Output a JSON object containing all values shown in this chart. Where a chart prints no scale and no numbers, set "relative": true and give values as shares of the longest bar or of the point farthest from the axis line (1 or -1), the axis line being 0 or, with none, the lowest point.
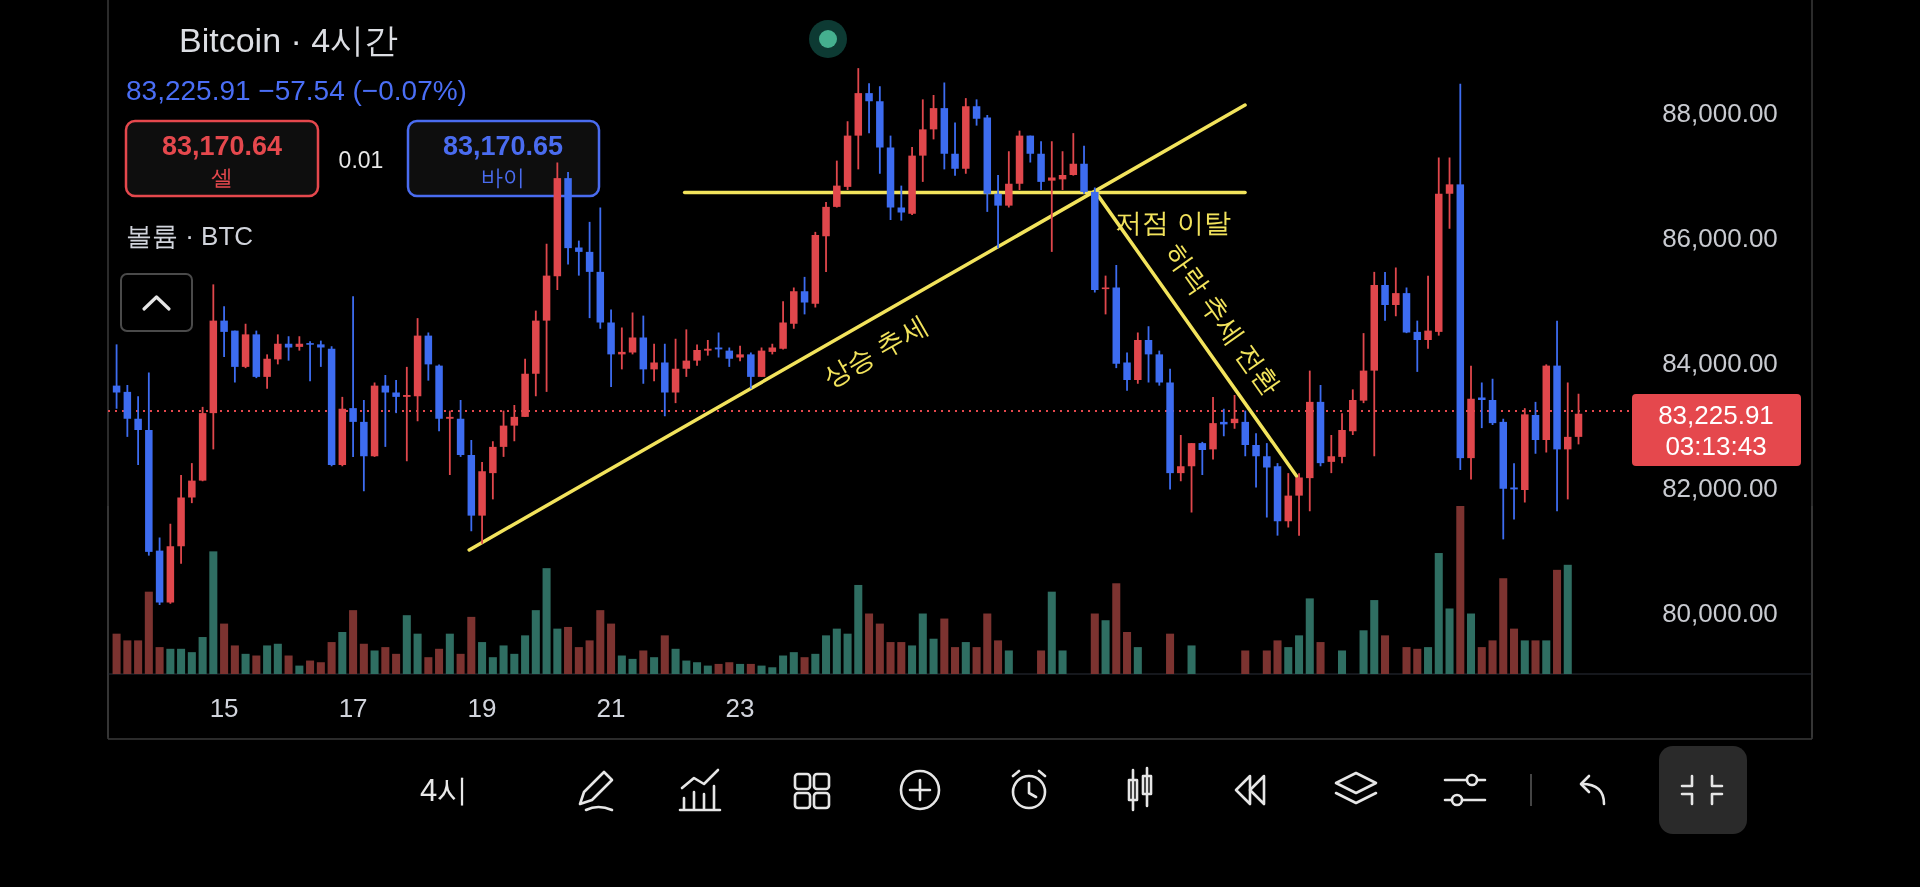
{
  "chart_data": [
    {
      "type": "candlestick",
      "title": "Bitcoin · 4시간",
      "subtitle": "83,225.91 −57.54 (−0.07%)",
      "x": [
        13.333,
        13.5,
        13.667,
        13.833,
        14,
        14.167,
        14.333,
        14.5,
        14.667,
        14.833,
        15,
        15.167,
        15.333,
        15.5,
        15.667,
        15.833,
        16,
        16.167,
        16.333,
        16.5,
        16.667,
        16.833,
        17,
        17.167,
        17.333,
        17.5,
        17.667,
        17.833,
        18,
        18.167,
        18.333,
        18.5,
        18.667,
        18.833,
        19,
        19.167,
        19.333,
        19.5,
        19.667,
        19.833,
        20,
        20.167,
        20.333,
        20.5,
        20.667,
        20.833,
        21,
        21.167,
        21.333,
        21.5,
        21.667,
        21.833,
        22,
        22.167,
        22.333,
        22.5,
        22.667,
        22.833,
        23,
        23.167,
        23.333,
        23.5,
        23.667,
        23.833,
        24,
        24.167,
        24.333,
        24.5,
        24.667,
        24.833,
        25,
        25.167,
        25.333,
        25.5,
        25.667,
        25.833,
        26,
        26.167,
        26.333,
        26.5,
        26.667,
        26.833,
        27,
        27.167,
        27.333,
        27.5,
        27.667,
        27.833,
        28,
        28.167,
        28.333,
        28.5,
        28.667,
        28.833,
        29,
        29.167,
        29.333,
        29.5,
        29.667,
        29.833,
        30,
        30.167,
        30.333,
        30.5,
        30.667,
        30.833,
        31,
        31.167,
        31.333,
        31.5,
        31.667,
        31.833,
        32,
        32.167,
        32.333,
        32.5,
        32.667,
        32.833,
        33,
        33.167,
        33.333,
        33.5,
        33.667,
        33.833,
        34,
        34.167,
        34.333,
        34.5,
        34.667,
        34.833,
        35,
        35.167,
        35.333,
        35.5,
        35.667,
        35.833,
        36
      ],
      "ohlc": [
        [
          83630,
          84290,
          83260,
          83520
        ],
        [
          83530,
          83640,
          82810,
          83100
        ],
        [
          83100,
          83460,
          82360,
          82920
        ],
        [
          82920,
          83840,
          80910,
          80970
        ],
        [
          80990,
          81200,
          80120,
          80160
        ],
        [
          80160,
          81420,
          80140,
          81060
        ],
        [
          81060,
          82200,
          80780,
          81840
        ],
        [
          81840,
          82390,
          81750,
          82110
        ],
        [
          82110,
          83290,
          82100,
          83190
        ],
        [
          83190,
          85250,
          82610,
          84670
        ],
        [
          84670,
          84900,
          84090,
          84490
        ],
        [
          84510,
          84510,
          83680,
          83930
        ],
        [
          83930,
          84620,
          83910,
          84450
        ],
        [
          84450,
          84510,
          83750,
          83770
        ],
        [
          83770,
          84130,
          83580,
          84060
        ],
        [
          84050,
          84450,
          83970,
          84300
        ],
        [
          84300,
          84420,
          84030,
          84240
        ],
        [
          84250,
          84420,
          84190,
          84300
        ],
        [
          84310,
          84340,
          83700,
          84290
        ],
        [
          84290,
          84350,
          83930,
          84240
        ],
        [
          84220,
          84260,
          82340,
          82360
        ],
        [
          82360,
          83450,
          82340,
          83260
        ],
        [
          83270,
          85060,
          82490,
          83050
        ],
        [
          83050,
          83400,
          81940,
          82500
        ],
        [
          82500,
          83680,
          82490,
          83630
        ],
        [
          83630,
          83800,
          82650,
          83520
        ],
        [
          83520,
          83720,
          83190,
          83450
        ],
        [
          83450,
          83930,
          82420,
          83480
        ],
        [
          83460,
          84710,
          83060,
          84430
        ],
        [
          84430,
          84480,
          83710,
          83970
        ],
        [
          83950,
          83970,
          82900,
          83100
        ],
        [
          83100,
          83230,
          82200,
          83130
        ],
        [
          83100,
          83400,
          82490,
          82520
        ],
        [
          82520,
          82760,
          81300,
          81550
        ],
        [
          81550,
          82410,
          81100,
          82260
        ],
        [
          82230,
          82740,
          81810,
          82650
        ],
        [
          82650,
          83230,
          82490,
          82990
        ],
        [
          82990,
          83320,
          82740,
          83130
        ],
        [
          83130,
          84060,
          83130,
          83820
        ],
        [
          83820,
          84830,
          83460,
          84670
        ],
        [
          84670,
          85900,
          83530,
          85390
        ],
        [
          85380,
          87200,
          85160,
          86950
        ],
        [
          86950,
          87050,
          85570,
          85830
        ],
        [
          85840,
          85950,
          85390,
          85770
        ],
        [
          85770,
          86250,
          84710,
          85450
        ],
        [
          85450,
          86480,
          84540,
          84640
        ],
        [
          84640,
          84850,
          83610,
          84130
        ],
        [
          84130,
          84560,
          83890,
          84170
        ],
        [
          84160,
          84800,
          84130,
          84400
        ],
        [
          84400,
          84750,
          83660,
          83890
        ],
        [
          83890,
          84300,
          83700,
          84000
        ],
        [
          84000,
          84300,
          83140,
          83520
        ],
        [
          83520,
          84380,
          83350,
          83900
        ],
        [
          83900,
          84530,
          83770,
          84030
        ],
        [
          84030,
          84290,
          83950,
          84200
        ],
        [
          84190,
          84360,
          84110,
          84220
        ],
        [
          84240,
          84480,
          84080,
          84210
        ],
        [
          84190,
          84240,
          83930,
          84060
        ],
        [
          84080,
          84270,
          84020,
          84130
        ],
        [
          84130,
          84160,
          83580,
          83770
        ],
        [
          83770,
          84240,
          83770,
          84190
        ],
        [
          84170,
          84300,
          84130,
          84240
        ],
        [
          84220,
          84980,
          84210,
          84640
        ],
        [
          84620,
          85200,
          84540,
          85140
        ],
        [
          85140,
          85370,
          84770,
          84960
        ],
        [
          84940,
          86090,
          84880,
          86040
        ],
        [
          86020,
          86570,
          85450,
          86490
        ],
        [
          86490,
          87230,
          86480,
          86830
        ],
        [
          86810,
          87860,
          86760,
          87630
        ],
        [
          87630,
          88710,
          87090,
          88310
        ],
        [
          88310,
          88470,
          87670,
          88180
        ],
        [
          88180,
          88420,
          87020,
          87440
        ],
        [
          87440,
          87630,
          86280,
          86480
        ],
        [
          86480,
          86830,
          86270,
          86400
        ],
        [
          86380,
          87450,
          86360,
          87310
        ],
        [
          87310,
          88210,
          86890,
          87730
        ],
        [
          87730,
          88280,
          87570,
          88070
        ],
        [
          88070,
          88480,
          87090,
          87340
        ],
        [
          87340,
          87840,
          86990,
          87100
        ],
        [
          87100,
          88230,
          87020,
          88100
        ],
        [
          88100,
          88210,
          87790,
          87900
        ],
        [
          87920,
          87960,
          86410,
          86700
        ],
        [
          86700,
          87000,
          85830,
          86510
        ],
        [
          86510,
          87380,
          86480,
          86860
        ],
        [
          86860,
          87710,
          86760,
          87630
        ],
        [
          87630,
          87630,
          87200,
          87340
        ],
        [
          87340,
          87540,
          86760,
          86890
        ],
        [
          86910,
          87540,
          85770,
          86960
        ],
        [
          86930,
          87380,
          86760,
          87000
        ],
        [
          87000,
          87670,
          86990,
          87180
        ],
        [
          87180,
          87470,
          86700,
          86730
        ],
        [
          86730,
          86800,
          85120,
          85160
        ],
        [
          85180,
          85390,
          84770,
          85200
        ],
        [
          85200,
          85560,
          83910,
          83980
        ],
        [
          84000,
          84160,
          83550,
          83720
        ],
        [
          83720,
          84480,
          83660,
          84360
        ],
        [
          84360,
          84580,
          83680,
          84130
        ],
        [
          84130,
          84190,
          83630,
          83680
        ],
        [
          83680,
          83900,
          81970,
          82230
        ],
        [
          82230,
          82840,
          82100,
          82340
        ],
        [
          82340,
          82710,
          81600,
          82710
        ],
        [
          82710,
          82730,
          82200,
          82600
        ],
        [
          82610,
          83450,
          82450,
          83030
        ],
        [
          83050,
          83260,
          82820,
          83010
        ],
        [
          83030,
          83480,
          82940,
          83100
        ],
        [
          83050,
          83230,
          82500,
          82680
        ],
        [
          82680,
          82870,
          82000,
          82500
        ],
        [
          82500,
          82710,
          81520,
          82320
        ],
        [
          82340,
          82390,
          81230,
          81460
        ],
        [
          81460,
          82230,
          81360,
          81870
        ],
        [
          81870,
          82230,
          81230,
          82160
        ],
        [
          82150,
          83870,
          81620,
          83370
        ],
        [
          83370,
          83640,
          82340,
          82390
        ],
        [
          82410,
          82840,
          82230,
          82500
        ],
        [
          82490,
          83190,
          82390,
          82920
        ],
        [
          82900,
          83570,
          82840,
          83400
        ],
        [
          83390,
          84470,
          83350,
          83870
        ],
        [
          83870,
          85450,
          82500,
          85240
        ],
        [
          85240,
          85450,
          84670,
          84920
        ],
        [
          84920,
          85520,
          84740,
          85110
        ],
        [
          85110,
          85200,
          84470,
          84480
        ],
        [
          84490,
          84670,
          83850,
          84360
        ],
        [
          84360,
          85390,
          84220,
          84510
        ],
        [
          84490,
          87280,
          84430,
          86700
        ],
        [
          86700,
          87280,
          86140,
          86850
        ],
        [
          86850,
          88460,
          82280,
          82470
        ],
        [
          82470,
          83950,
          82130,
          83420
        ],
        [
          83440,
          83680,
          82950,
          83400
        ],
        [
          83400,
          83740,
          83000,
          83030
        ],
        [
          83050,
          83100,
          81170,
          81980
        ],
        [
          82000,
          82390,
          81490,
          81970
        ],
        [
          81960,
          83270,
          81760,
          83170
        ],
        [
          83160,
          83370,
          82540,
          82760
        ],
        [
          82760,
          83970,
          82560,
          83950
        ],
        [
          83950,
          84670,
          81620,
          82610
        ],
        [
          82610,
          83680,
          81810,
          82810
        ],
        [
          82810,
          83500,
          82690,
          83180
        ]
      ],
      "colors": [
        "#3d6cf0",
        "#3d6cf0",
        "#3d6cf0",
        "#3d6cf0",
        "#3d6cf0",
        "#e0474c",
        "#e0474c",
        "#e0474c",
        "#e0474c",
        "#e0474c",
        "#3d6cf0",
        "#3d6cf0",
        "#e0474c",
        "#3d6cf0",
        "#e0474c",
        "#e0474c",
        "#3d6cf0",
        "#e0474c",
        "#3d6cf0",
        "#3d6cf0",
        "#3d6cf0",
        "#e0474c",
        "#3d6cf0",
        "#3d6cf0",
        "#e0474c",
        "#3d6cf0",
        "#3d6cf0",
        "#e0474c",
        "#e0474c",
        "#3d6cf0",
        "#3d6cf0",
        "#e0474c",
        "#3d6cf0",
        "#3d6cf0",
        "#e0474c",
        "#e0474c",
        "#e0474c",
        "#e0474c",
        "#e0474c",
        "#e0474c",
        "#e0474c",
        "#e0474c",
        "#3d6cf0",
        "#3d6cf0",
        "#3d6cf0",
        "#3d6cf0",
        "#3d6cf0",
        "#e0474c",
        "#e0474c",
        "#3d6cf0",
        "#e0474c",
        "#3d6cf0",
        "#e0474c",
        "#e0474c",
        "#e0474c",
        "#e0474c",
        "#3d6cf0",
        "#3d6cf0",
        "#e0474c",
        "#3d6cf0",
        "#e0474c",
        "#e0474c",
        "#e0474c",
        "#e0474c",
        "#3d6cf0",
        "#e0474c",
        "#e0474c",
        "#e0474c",
        "#e0474c",
        "#e0474c",
        "#3d6cf0",
        "#3d6cf0",
        "#3d6cf0",
        "#3d6cf0",
        "#e0474c",
        "#e0474c",
        "#e0474c",
        "#3d6cf0",
        "#3d6cf0",
        "#e0474c",
        "#3d6cf0",
        "#3d6cf0",
        "#3d6cf0",
        "#e0474c",
        "#e0474c",
        "#3d6cf0",
        "#3d6cf0",
        "#e0474c",
        "#e0474c",
        "#e0474c",
        "#3d6cf0",
        "#3d6cf0",
        "#e0474c",
        "#3d6cf0",
        "#3d6cf0",
        "#e0474c",
        "#3d6cf0",
        "#3d6cf0",
        "#3d6cf0",
        "#e0474c",
        "#e0474c",
        "#3d6cf0",
        "#e0474c",
        "#3d6cf0",
        "#e0474c",
        "#3d6cf0",
        "#3d6cf0",
        "#3d6cf0",
        "#3d6cf0",
        "#e0474c",
        "#e0474c",
        "#e0474c",
        "#3d6cf0",
        "#e0474c",
        "#e0474c",
        "#e0474c",
        "#e0474c",
        "#e0474c",
        "#3d6cf0",
        "#e0474c",
        "#3d6cf0",
        "#3d6cf0",
        "#e0474c",
        "#e0474c",
        "#e0474c",
        "#3d6cf0",
        "#e0474c",
        "#3d6cf0",
        "#3d6cf0",
        "#3d6cf0",
        "#3d6cf0",
        "#e0474c",
        "#3d6cf0",
        "#e0474c",
        "#3d6cf0",
        "#e0474c",
        "#e0474c"
      ],
      "series": [
        {
          "type": "line",
          "x": [
            18.8,
            30.83
          ],
          "values": [
            81000,
            88120
          ],
          "color": "#f2e35c"
        },
        {
          "type": "line",
          "x": [
            22.14,
            30.83
          ],
          "values": [
            86720,
            86720
          ],
          "color": "#f2e35c"
        },
        {
          "type": "line",
          "x": [
            28.51,
            31.63
          ],
          "values": [
            86730,
            82180
          ],
          "color": "#f2e35c"
        }
      ],
      "xlim": [
        13.2,
        39.62
      ],
      "ylim": [
        78000,
        89800
      ],
      "yticks": [
        {
          "value": 80000,
          "label": "80,000.00"
        },
        {
          "value": 82000,
          "label": "82,000.00"
        },
        {
          "value": 84000,
          "label": "84,000.00"
        },
        {
          "value": 86000,
          "label": "86,000.00"
        },
        {
          "value": 88000,
          "label": "88,000.00"
        }
      ],
      "tick_labels": "y",
      "ref_lines": [
        {
          "axis": "y",
          "value": 83225.91,
          "label": "83,225.91 03:13:43",
          "color": "#e5484d",
          "line_style": "dotted"
        }
      ],
      "annotations": [
        {
          "text": "상승 추세",
          "x": 24.87,
          "y": 84590
        },
        {
          "text": "저점 이탈",
          "x": 29.71,
          "y": 86720
        },
        {
          "text": "하락 추세 전환",
          "x": 30.1,
          "y": 84410
        },
        "83,170.64",
        "셀",
        "0.01",
        "83,170.65",
        "바이",
        "4시"
      ]
    },
    {
      "type": "bar",
      "title": "볼륨 · BTC",
      "relative": true,
      "x": [
        13.333,
        13.5,
        13.667,
        13.833,
        14,
        14.167,
        14.333,
        14.5,
        14.667,
        14.833,
        15,
        15.167,
        15.333,
        15.5,
        15.667,
        15.833,
        16,
        16.167,
        16.333,
        16.5,
        16.667,
        16.833,
        17,
        17.167,
        17.333,
        17.5,
        17.667,
        17.833,
        18,
        18.167,
        18.333,
        18.5,
        18.667,
        18.833,
        19,
        19.167,
        19.333,
        19.5,
        19.667,
        19.833,
        20,
        20.167,
        20.333,
        20.5,
        20.667,
        20.833,
        21,
        21.167,
        21.333,
        21.5,
        21.667,
        21.833,
        22,
        22.167,
        22.333,
        22.5,
        22.667,
        22.833,
        23,
        23.167,
        23.333,
        23.5,
        23.667,
        23.833,
        24,
        24.167,
        24.333,
        24.5,
        24.667,
        24.833,
        25,
        25.167,
        25.333,
        25.5,
        25.667,
        25.833,
        26,
        26.167,
        26.333,
        26.5,
        26.667,
        26.833,
        27,
        27.167,
        27.667,
        27.833,
        28,
        28.5,
        28.667,
        28.833,
        29,
        29.167,
        29.667,
        30,
        30.833,
        31.167,
        31.333,
        31.5,
        31.667,
        31.833,
        32,
        32.333,
        32.667,
        32.833,
        33,
        33.333,
        33.5,
        33.667,
        33.833,
        34,
        34.167,
        34.333,
        34.5,
        34.667,
        34.833,
        35,
        35.167,
        35.333,
        35.5,
        35.667,
        35.833
      ],
      "values": [
        0.24,
        0.2,
        0.2,
        0.49,
        0.16,
        0.15,
        0.15,
        0.13,
        0.22,
        0.73,
        0.3,
        0.17,
        0.12,
        0.11,
        0.17,
        0.18,
        0.11,
        0.05,
        0.08,
        0.07,
        0.19,
        0.25,
        0.38,
        0.18,
        0.14,
        0.16,
        0.12,
        0.35,
        0.24,
        0.1,
        0.15,
        0.24,
        0.12,
        0.34,
        0.19,
        0.1,
        0.17,
        0.12,
        0.23,
        0.38,
        0.63,
        0.27,
        0.28,
        0.16,
        0.2,
        0.38,
        0.3,
        0.11,
        0.09,
        0.14,
        0.1,
        0.23,
        0.15,
        0.08,
        0.07,
        0.05,
        0.06,
        0.07,
        0.06,
        0.06,
        0.05,
        0.04,
        0.11,
        0.13,
        0.1,
        0.12,
        0.23,
        0.27,
        0.24,
        0.53,
        0.36,
        0.3,
        0.19,
        0.19,
        0.17,
        0.36,
        0.21,
        0.33,
        0.16,
        0.19,
        0.16,
        0.36,
        0.2,
        0.14,
        0.14,
        0.49,
        0.14,
        0.36,
        0.32,
        0.54,
        0.25,
        0.16,
        0.24,
        0.17,
        0.14,
        0.14,
        0.2,
        0.16,
        0.23,
        0.45,
        0.19,
        0.14,
        0.26,
        0.44,
        0.23,
        0.16,
        0.15,
        0.16,
        0.72,
        0.39,
        1,
        0.36,
        0.16,
        0.2,
        0.57,
        0.27,
        0.2,
        0.2,
        0.2,
        0.62,
        0.65
      ],
      "colors": [
        "#7c3330",
        "#7c3330",
        "#7c3330",
        "#7c3330",
        "#7c3330",
        "#2f6e62",
        "#2f6e62",
        "#2f6e62",
        "#2f6e62",
        "#2f6e62",
        "#7c3330",
        "#7c3330",
        "#2f6e62",
        "#7c3330",
        "#2f6e62",
        "#2f6e62",
        "#7c3330",
        "#2f6e62",
        "#7c3330",
        "#7c3330",
        "#7c3330",
        "#2f6e62",
        "#7c3330",
        "#7c3330",
        "#2f6e62",
        "#7c3330",
        "#7c3330",
        "#2f6e62",
        "#2f6e62",
        "#7c3330",
        "#7c3330",
        "#2f6e62",
        "#7c3330",
        "#7c3330",
        "#2f6e62",
        "#2f6e62",
        "#2f6e62",
        "#2f6e62",
        "#2f6e62",
        "#2f6e62",
        "#2f6e62",
        "#2f6e62",
        "#7c3330",
        "#7c3330",
        "#7c3330",
        "#7c3330",
        "#7c3330",
        "#2f6e62",
        "#2f6e62",
        "#7c3330",
        "#2f6e62",
        "#7c3330",
        "#2f6e62",
        "#2f6e62",
        "#2f6e62",
        "#2f6e62",
        "#7c3330",
        "#7c3330",
        "#2f6e62",
        "#7c3330",
        "#2f6e62",
        "#2f6e62",
        "#2f6e62",
        "#2f6e62",
        "#7c3330",
        "#2f6e62",
        "#2f6e62",
        "#2f6e62",
        "#2f6e62",
        "#2f6e62",
        "#7c3330",
        "#7c3330",
        "#7c3330",
        "#7c3330",
        "#2f6e62",
        "#2f6e62",
        "#2f6e62",
        "#7c3330",
        "#7c3330",
        "#2f6e62",
        "#7c3330",
        "#7c3330",
        "#7c3330",
        "#2f6e62",
        "#7c3330",
        "#2f6e62",
        "#2f6e62",
        "#7c3330",
        "#2f6e62",
        "#7c3330",
        "#7c3330",
        "#2f6e62",
        "#7c3330",
        "#2f6e62",
        "#7c3330",
        "#7c3330",
        "#7c3330",
        "#2f6e62",
        "#2f6e62",
        "#2f6e62",
        "#7c3330",
        "#2f6e62",
        "#2f6e62",
        "#2f6e62",
        "#7c3330",
        "#7c3330",
        "#7c3330",
        "#2f6e62",
        "#2f6e62",
        "#2f6e62",
        "#7c3330",
        "#2f6e62",
        "#7c3330",
        "#7c3330",
        "#7c3330",
        "#7c3330",
        "#2f6e62",
        "#7c3330",
        "#2f6e62",
        "#7c3330",
        "#2f6e62"
      ],
      "xlim": [
        13.2,
        39.62
      ],
      "xticks": [
        15,
        17,
        19,
        21,
        23
      ],
      "tick_labels": "x"
    }
  ]
}
